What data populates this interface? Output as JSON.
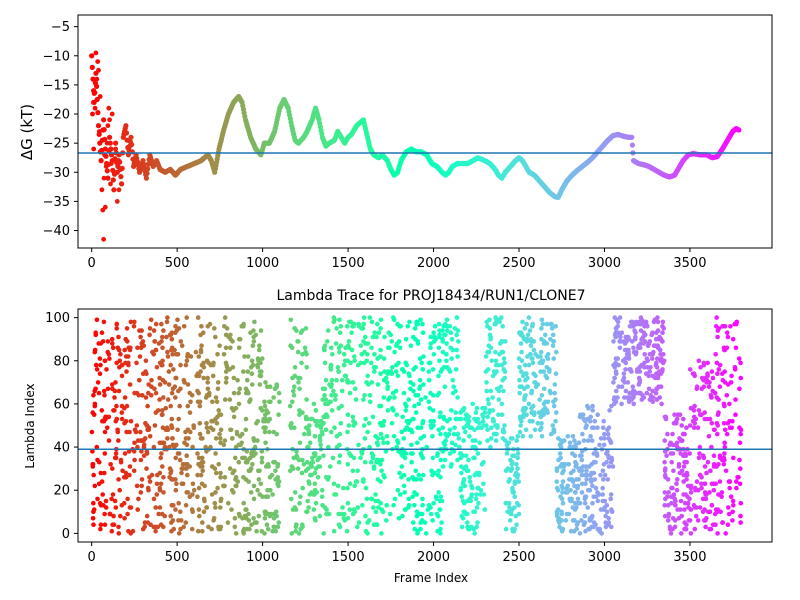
{
  "chart_data": [
    {
      "type": "scatter",
      "title": "",
      "xlabel": "",
      "ylabel": "ΔG (kT)",
      "xlim": [
        -80,
        3980
      ],
      "ylim": [
        -43,
        -3
      ],
      "xticks": [
        0,
        500,
        1000,
        1500,
        2000,
        2500,
        3000,
        3500
      ],
      "yticks": [
        -40,
        -35,
        -30,
        -25,
        -20,
        -15,
        -10,
        -5
      ],
      "hline": -26.7,
      "hline_color": "#1f77b4",
      "colormap": "rainbow (red at frame 0 to violet at final frame)",
      "trace": [
        [
          0,
          -10
        ],
        [
          15,
          -18
        ],
        [
          25,
          -13
        ],
        [
          40,
          -22
        ],
        [
          55,
          -28
        ],
        [
          70,
          -21
        ],
        [
          80,
          -26
        ],
        [
          95,
          -31
        ],
        [
          105,
          -24
        ],
        [
          120,
          -28
        ],
        [
          130,
          -33
        ],
        [
          140,
          -25
        ],
        [
          150,
          -30
        ],
        [
          160,
          -27
        ],
        [
          175,
          -32
        ],
        [
          185,
          -24
        ],
        [
          200,
          -22
        ],
        [
          215,
          -27
        ],
        [
          230,
          -24
        ],
        [
          245,
          -29
        ],
        [
          260,
          -27
        ],
        [
          280,
          -30
        ],
        [
          300,
          -28
        ],
        [
          320,
          -31
        ],
        [
          340,
          -27
        ],
        [
          360,
          -29
        ],
        [
          380,
          -28
        ],
        [
          400,
          -29.5
        ],
        [
          430,
          -30
        ],
        [
          460,
          -29.5
        ],
        [
          490,
          -30.5
        ],
        [
          520,
          -29.5
        ],
        [
          560,
          -29
        ],
        [
          600,
          -28.5
        ],
        [
          640,
          -28
        ],
        [
          680,
          -27
        ],
        [
          700,
          -28
        ],
        [
          720,
          -30
        ],
        [
          745,
          -26
        ],
        [
          770,
          -23
        ],
        [
          800,
          -20
        ],
        [
          830,
          -18
        ],
        [
          860,
          -17
        ],
        [
          880,
          -18
        ],
        [
          900,
          -21
        ],
        [
          930,
          -24
        ],
        [
          960,
          -26
        ],
        [
          990,
          -27
        ],
        [
          1010,
          -25
        ],
        [
          1040,
          -25
        ],
        [
          1070,
          -23
        ],
        [
          1100,
          -19
        ],
        [
          1125,
          -17.5
        ],
        [
          1150,
          -19
        ],
        [
          1170,
          -22
        ],
        [
          1190,
          -24.5
        ],
        [
          1210,
          -25
        ],
        [
          1240,
          -24
        ],
        [
          1260,
          -23
        ],
        [
          1290,
          -21
        ],
        [
          1310,
          -19
        ],
        [
          1330,
          -21
        ],
        [
          1350,
          -24
        ],
        [
          1370,
          -25.5
        ],
        [
          1390,
          -25
        ],
        [
          1420,
          -24.5
        ],
        [
          1440,
          -23
        ],
        [
          1460,
          -24
        ],
        [
          1480,
          -25
        ],
        [
          1500,
          -24
        ],
        [
          1520,
          -23.5
        ],
        [
          1550,
          -22
        ],
        [
          1570,
          -21.5
        ],
        [
          1590,
          -21
        ],
        [
          1610,
          -23.5
        ],
        [
          1630,
          -26
        ],
        [
          1650,
          -27
        ],
        [
          1680,
          -27.5
        ],
        [
          1700,
          -27
        ],
        [
          1730,
          -28
        ],
        [
          1750,
          -29.5
        ],
        [
          1770,
          -30.5
        ],
        [
          1790,
          -30
        ],
        [
          1810,
          -28
        ],
        [
          1840,
          -26.5
        ],
        [
          1870,
          -26
        ],
        [
          1900,
          -26.5
        ],
        [
          1930,
          -26.5
        ],
        [
          1960,
          -27
        ],
        [
          1990,
          -28.5
        ],
        [
          2020,
          -29
        ],
        [
          2050,
          -30
        ],
        [
          2070,
          -30.5
        ],
        [
          2090,
          -30
        ],
        [
          2110,
          -29
        ],
        [
          2140,
          -28.5
        ],
        [
          2170,
          -28.5
        ],
        [
          2200,
          -28.5
        ],
        [
          2230,
          -28
        ],
        [
          2260,
          -27.5
        ],
        [
          2300,
          -28
        ],
        [
          2330,
          -28.5
        ],
        [
          2360,
          -29.5
        ],
        [
          2380,
          -30.5
        ],
        [
          2400,
          -31
        ],
        [
          2420,
          -30
        ],
        [
          2450,
          -29
        ],
        [
          2480,
          -28
        ],
        [
          2500,
          -27.5
        ],
        [
          2520,
          -28
        ],
        [
          2540,
          -29
        ],
        [
          2560,
          -30
        ],
        [
          2590,
          -30.5
        ],
        [
          2620,
          -31.5
        ],
        [
          2650,
          -32.5
        ],
        [
          2680,
          -33.5
        ],
        [
          2710,
          -34.2
        ],
        [
          2730,
          -34.3
        ],
        [
          2750,
          -33
        ],
        [
          2780,
          -31.5
        ],
        [
          2810,
          -30.5
        ],
        [
          2840,
          -29.7
        ],
        [
          2870,
          -29
        ],
        [
          2900,
          -28.3
        ],
        [
          2930,
          -27.5
        ],
        [
          2960,
          -26.5
        ],
        [
          2990,
          -25.5
        ],
        [
          3020,
          -24.5
        ],
        [
          3050,
          -23.7
        ],
        [
          3080,
          -23.5
        ],
        [
          3110,
          -23.8
        ],
        [
          3140,
          -24
        ],
        [
          3160,
          -24
        ],
        [
          3170,
          -28
        ],
        [
          3200,
          -28.5
        ],
        [
          3230,
          -28.7
        ],
        [
          3260,
          -29
        ],
        [
          3290,
          -29.5
        ],
        [
          3320,
          -30
        ],
        [
          3350,
          -30.5
        ],
        [
          3380,
          -30.8
        ],
        [
          3410,
          -30.5
        ],
        [
          3430,
          -29.5
        ],
        [
          3460,
          -28
        ],
        [
          3490,
          -27
        ],
        [
          3520,
          -26.8
        ],
        [
          3560,
          -27
        ],
        [
          3600,
          -27
        ],
        [
          3630,
          -27.5
        ],
        [
          3660,
          -27.3
        ],
        [
          3690,
          -26
        ],
        [
          3710,
          -25
        ],
        [
          3730,
          -24
        ],
        [
          3750,
          -23
        ],
        [
          3770,
          -22.5
        ],
        [
          3790,
          -22.8
        ]
      ],
      "scatter_points": [
        [
          0,
          -10
        ],
        [
          5,
          -20
        ],
        [
          10,
          -18
        ],
        [
          12,
          -26
        ],
        [
          15,
          -16.5
        ],
        [
          20,
          -19
        ],
        [
          25,
          -9.5
        ],
        [
          30,
          -14
        ],
        [
          35,
          -11
        ],
        [
          40,
          -12.5
        ],
        [
          45,
          -23
        ],
        [
          50,
          -17
        ],
        [
          55,
          -28
        ],
        [
          60,
          -33
        ],
        [
          65,
          -36.5
        ],
        [
          70,
          -41.5
        ],
        [
          72,
          -31
        ],
        [
          75,
          -27
        ],
        [
          80,
          -36
        ],
        [
          85,
          -29
        ],
        [
          90,
          -25
        ],
        [
          95,
          -22
        ],
        [
          100,
          -19
        ],
        [
          105,
          -21
        ],
        [
          110,
          -32
        ],
        [
          115,
          -28.5
        ],
        [
          120,
          -20
        ],
        [
          130,
          -30
        ],
        [
          140,
          -26
        ],
        [
          150,
          -35
        ],
        [
          160,
          -33
        ]
      ]
    },
    {
      "type": "scatter",
      "title": "Lambda Trace for PROJ18434/RUN1/CLONE7",
      "xlabel": "Frame Index",
      "ylabel": "Lambda Index",
      "xlim": [
        -80,
        3980
      ],
      "ylim": [
        -4,
        104
      ],
      "xticks": [
        0,
        500,
        1000,
        1500,
        2000,
        2500,
        3000,
        3500
      ],
      "yticks": [
        0,
        20,
        40,
        60,
        80,
        100
      ],
      "hline": 39,
      "hline_color": "#1f77b4",
      "colormap": "rainbow (red at frame 0 to violet at final frame)",
      "x_max": 3800,
      "density_bands": [
        {
          "x": [
            0,
            700
          ],
          "y": [
            0,
            100
          ]
        },
        {
          "x": [
            700,
            1000
          ],
          "y": [
            0,
            100
          ]
        },
        {
          "x": [
            1000,
            1100
          ],
          "y": [
            0,
            70
          ]
        },
        {
          "x": [
            1160,
            1260
          ],
          "y": [
            0,
            100
          ]
        },
        {
          "x": [
            1260,
            1350
          ],
          "y": [
            5,
            60
          ]
        },
        {
          "x": [
            1350,
            1480
          ],
          "y": [
            0,
            100
          ]
        },
        {
          "x": [
            1480,
            1700
          ],
          "y": [
            0,
            100
          ]
        },
        {
          "x": [
            1700,
            2050
          ],
          "y": [
            0,
            100
          ]
        },
        {
          "x": [
            2050,
            2150
          ],
          "y": [
            30,
            100
          ]
        },
        {
          "x": [
            2150,
            2300
          ],
          "y": [
            0,
            60
          ]
        },
        {
          "x": [
            2300,
            2420
          ],
          "y": [
            40,
            100
          ]
        },
        {
          "x": [
            2420,
            2500
          ],
          "y": [
            0,
            45
          ]
        },
        {
          "x": [
            2500,
            2720
          ],
          "y": [
            45,
            100
          ]
        },
        {
          "x": [
            2720,
            2850
          ],
          "y": [
            0,
            45
          ]
        },
        {
          "x": [
            2850,
            3050
          ],
          "y": [
            0,
            60
          ]
        },
        {
          "x": [
            3050,
            3350
          ],
          "y": [
            60,
            100
          ]
        },
        {
          "x": [
            3350,
            3500
          ],
          "y": [
            0,
            55
          ]
        },
        {
          "x": [
            3500,
            3650
          ],
          "y": [
            0,
            80
          ]
        },
        {
          "x": [
            3650,
            3800
          ],
          "y": [
            0,
            100
          ]
        }
      ]
    }
  ]
}
